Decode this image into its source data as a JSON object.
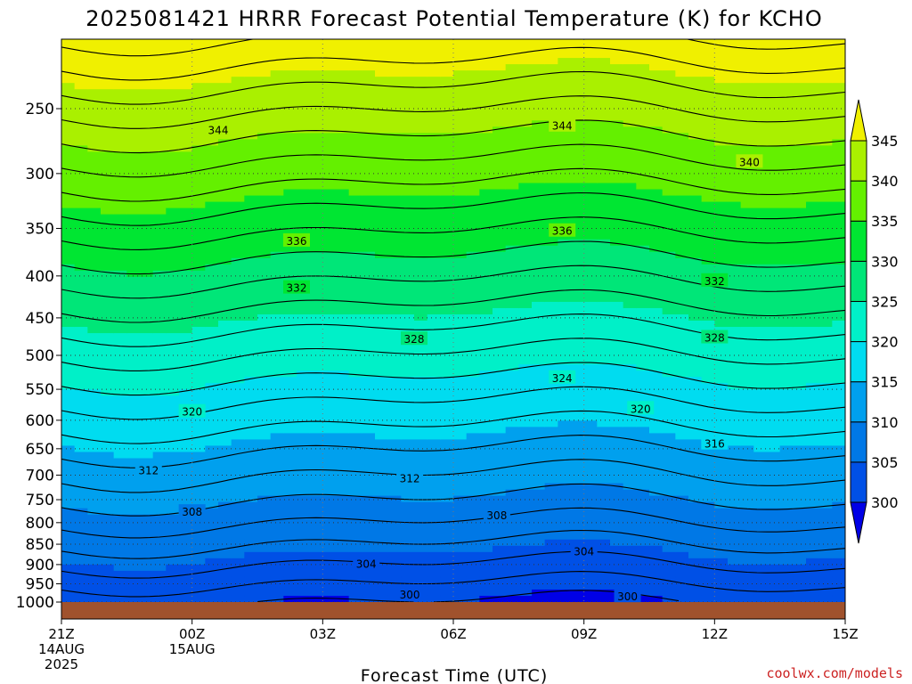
{
  "chart_data": {
    "type": "heatmap",
    "title": "2025081421 HRRR Forecast Potential Temperature (K) for KCHO",
    "xlabel": "Forecast Time (UTC)",
    "ylabel": "",
    "credit": "coolwx.com/models",
    "x_ticks": [
      {
        "hour": 0,
        "lines": [
          "21Z",
          "14AUG",
          "2025"
        ]
      },
      {
        "hour": 3,
        "lines": [
          "00Z",
          "15AUG"
        ]
      },
      {
        "hour": 6,
        "lines": [
          "03Z"
        ]
      },
      {
        "hour": 9,
        "lines": [
          "06Z"
        ]
      },
      {
        "hour": 12,
        "lines": [
          "09Z"
        ]
      },
      {
        "hour": 15,
        "lines": [
          "12Z"
        ]
      },
      {
        "hour": 18,
        "lines": [
          "15Z"
        ]
      }
    ],
    "xlim": [
      0,
      18
    ],
    "y_ticks": [
      250,
      300,
      350,
      400,
      450,
      500,
      550,
      600,
      650,
      700,
      750,
      800,
      850,
      900,
      950,
      1000
    ],
    "ylim": [
      200,
      1010
    ],
    "y_scale": "log",
    "y_inverted": true,
    "surface_pressure": 1000,
    "colorbar": {
      "ticks": [
        300,
        305,
        310,
        315,
        320,
        325,
        330,
        335,
        340,
        345
      ],
      "levels": [
        300,
        305,
        310,
        315,
        320,
        325,
        330,
        335,
        340,
        345
      ],
      "colors": [
        "#0000e6",
        "#0050e6",
        "#0078e6",
        "#00a0ee",
        "#00dcf0",
        "#00f0c8",
        "#00e678",
        "#00e632",
        "#64f000",
        "#aaf000",
        "#f0f000"
      ],
      "under_color": "#0000e6",
      "over_color": "#f0f000"
    },
    "contour_interval": 2,
    "contour_labels": [
      {
        "value": 344,
        "hour": 3.6,
        "p": 265
      },
      {
        "value": 344,
        "hour": 11.5,
        "p": 262
      },
      {
        "value": 340,
        "hour": 15.8,
        "p": 290
      },
      {
        "value": 336,
        "hour": 5.4,
        "p": 362
      },
      {
        "value": 336,
        "hour": 11.5,
        "p": 352
      },
      {
        "value": 332,
        "hour": 5.4,
        "p": 413
      },
      {
        "value": 332,
        "hour": 15.0,
        "p": 405
      },
      {
        "value": 328,
        "hour": 8.1,
        "p": 477
      },
      {
        "value": 328,
        "hour": 15.0,
        "p": 475
      },
      {
        "value": 324,
        "hour": 11.5,
        "p": 532
      },
      {
        "value": 320,
        "hour": 3.0,
        "p": 585
      },
      {
        "value": 320,
        "hour": 13.3,
        "p": 580
      },
      {
        "value": 316,
        "hour": 15.0,
        "p": 640
      },
      {
        "value": 312,
        "hour": 2.0,
        "p": 690
      },
      {
        "value": 312,
        "hour": 8.0,
        "p": 705
      },
      {
        "value": 308,
        "hour": 3.0,
        "p": 775
      },
      {
        "value": 308,
        "hour": 10.0,
        "p": 783
      },
      {
        "value": 304,
        "hour": 7.0,
        "p": 897
      },
      {
        "value": 304,
        "hour": 12.0,
        "p": 866
      },
      {
        "value": 300,
        "hour": 8.0,
        "p": 978
      },
      {
        "value": 300,
        "hour": 13.0,
        "p": 983
      }
    ],
    "grid": true
  }
}
